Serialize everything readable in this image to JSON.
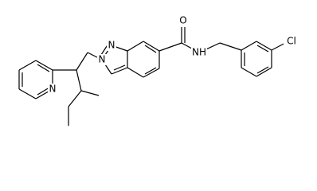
{
  "atom_labels": [
    "N",
    "N",
    "O",
    "NH",
    "N",
    "Cl"
  ]
}
